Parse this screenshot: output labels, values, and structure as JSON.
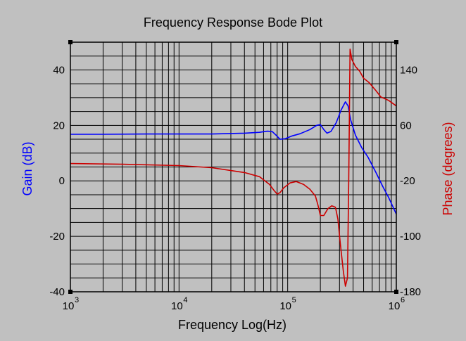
{
  "chart_data": {
    "type": "line",
    "title": "Frequency Response Bode Plot",
    "xlabel": "Frequency Log(Hz)",
    "ylabel_left": "Gain (dB)",
    "ylabel_right": "Phase (degrees)",
    "x_scale": "log",
    "xlim": [
      1000,
      1000000
    ],
    "ylim_left": [
      -40,
      50
    ],
    "ylim_right": [
      -180,
      180
    ],
    "x_ticks": [
      {
        "base": "10",
        "exp": "3",
        "value": 1000
      },
      {
        "base": "10",
        "exp": "4",
        "value": 10000
      },
      {
        "base": "10",
        "exp": "5",
        "value": 100000
      },
      {
        "base": "10",
        "exp": "6",
        "value": 1000000
      }
    ],
    "y_ticks_left": [
      "40",
      "20",
      "0",
      "-20",
      "-40"
    ],
    "y_ticks_left_values": [
      40,
      20,
      0,
      -20,
      -40
    ],
    "y_ticks_right": [
      "140",
      "60",
      "-20",
      "-100",
      "-180"
    ],
    "y_ticks_right_values": [
      140,
      60,
      -20,
      -100,
      -180
    ],
    "grid": true,
    "colors": {
      "gain": "#0000ff",
      "phase": "#cc0000",
      "background": "#c0c0c0",
      "grid": "#000000"
    },
    "series": [
      {
        "axis": "left",
        "x": [
          1000,
          2000,
          5000,
          10000,
          20000,
          40000,
          55000,
          65000,
          72000,
          78000,
          85000,
          95000,
          110000,
          130000,
          160000,
          185000,
          200000,
          215000,
          230000,
          250000,
          280000,
          310000,
          340000,
          360000,
          380000,
          420000,
          480000,
          550000,
          650000,
          750000,
          850000,
          1000000
        ],
        "values": [
          16.8,
          16.8,
          16.9,
          16.9,
          16.9,
          17.2,
          17.5,
          17.9,
          17.8,
          16.5,
          15.0,
          15.2,
          16.2,
          17.0,
          18.5,
          20.0,
          20.3,
          18.5,
          17.2,
          17.8,
          21.0,
          25.5,
          28.5,
          27.0,
          22.0,
          16.5,
          12.0,
          8.5,
          3.0,
          -2.0,
          -6.0,
          -12.0
        ]
      },
      {
        "axis": "right",
        "x": [
          1000,
          3000,
          10000,
          20000,
          40000,
          55000,
          68000,
          75000,
          80000,
          85000,
          92000,
          105000,
          120000,
          140000,
          160000,
          180000,
          190000,
          200000,
          215000,
          235000,
          255000,
          275000,
          290000,
          305000,
          325000,
          340000,
          355000,
          365000,
          375000,
          390000,
          420000,
          460000,
          500000,
          560000,
          650000,
          720000,
          850000,
          1000000
        ],
        "values": [
          5,
          4,
          2,
          -1,
          -8,
          -14,
          -25,
          -34,
          -39,
          -37,
          -30,
          -23,
          -21,
          -25,
          -32,
          -42,
          -55,
          -70,
          -70,
          -60,
          -56,
          -58,
          -75,
          -110,
          -150,
          -172,
          -160,
          -20,
          170,
          155,
          145,
          138,
          128,
          122,
          110,
          101,
          96,
          88
        ]
      }
    ]
  }
}
